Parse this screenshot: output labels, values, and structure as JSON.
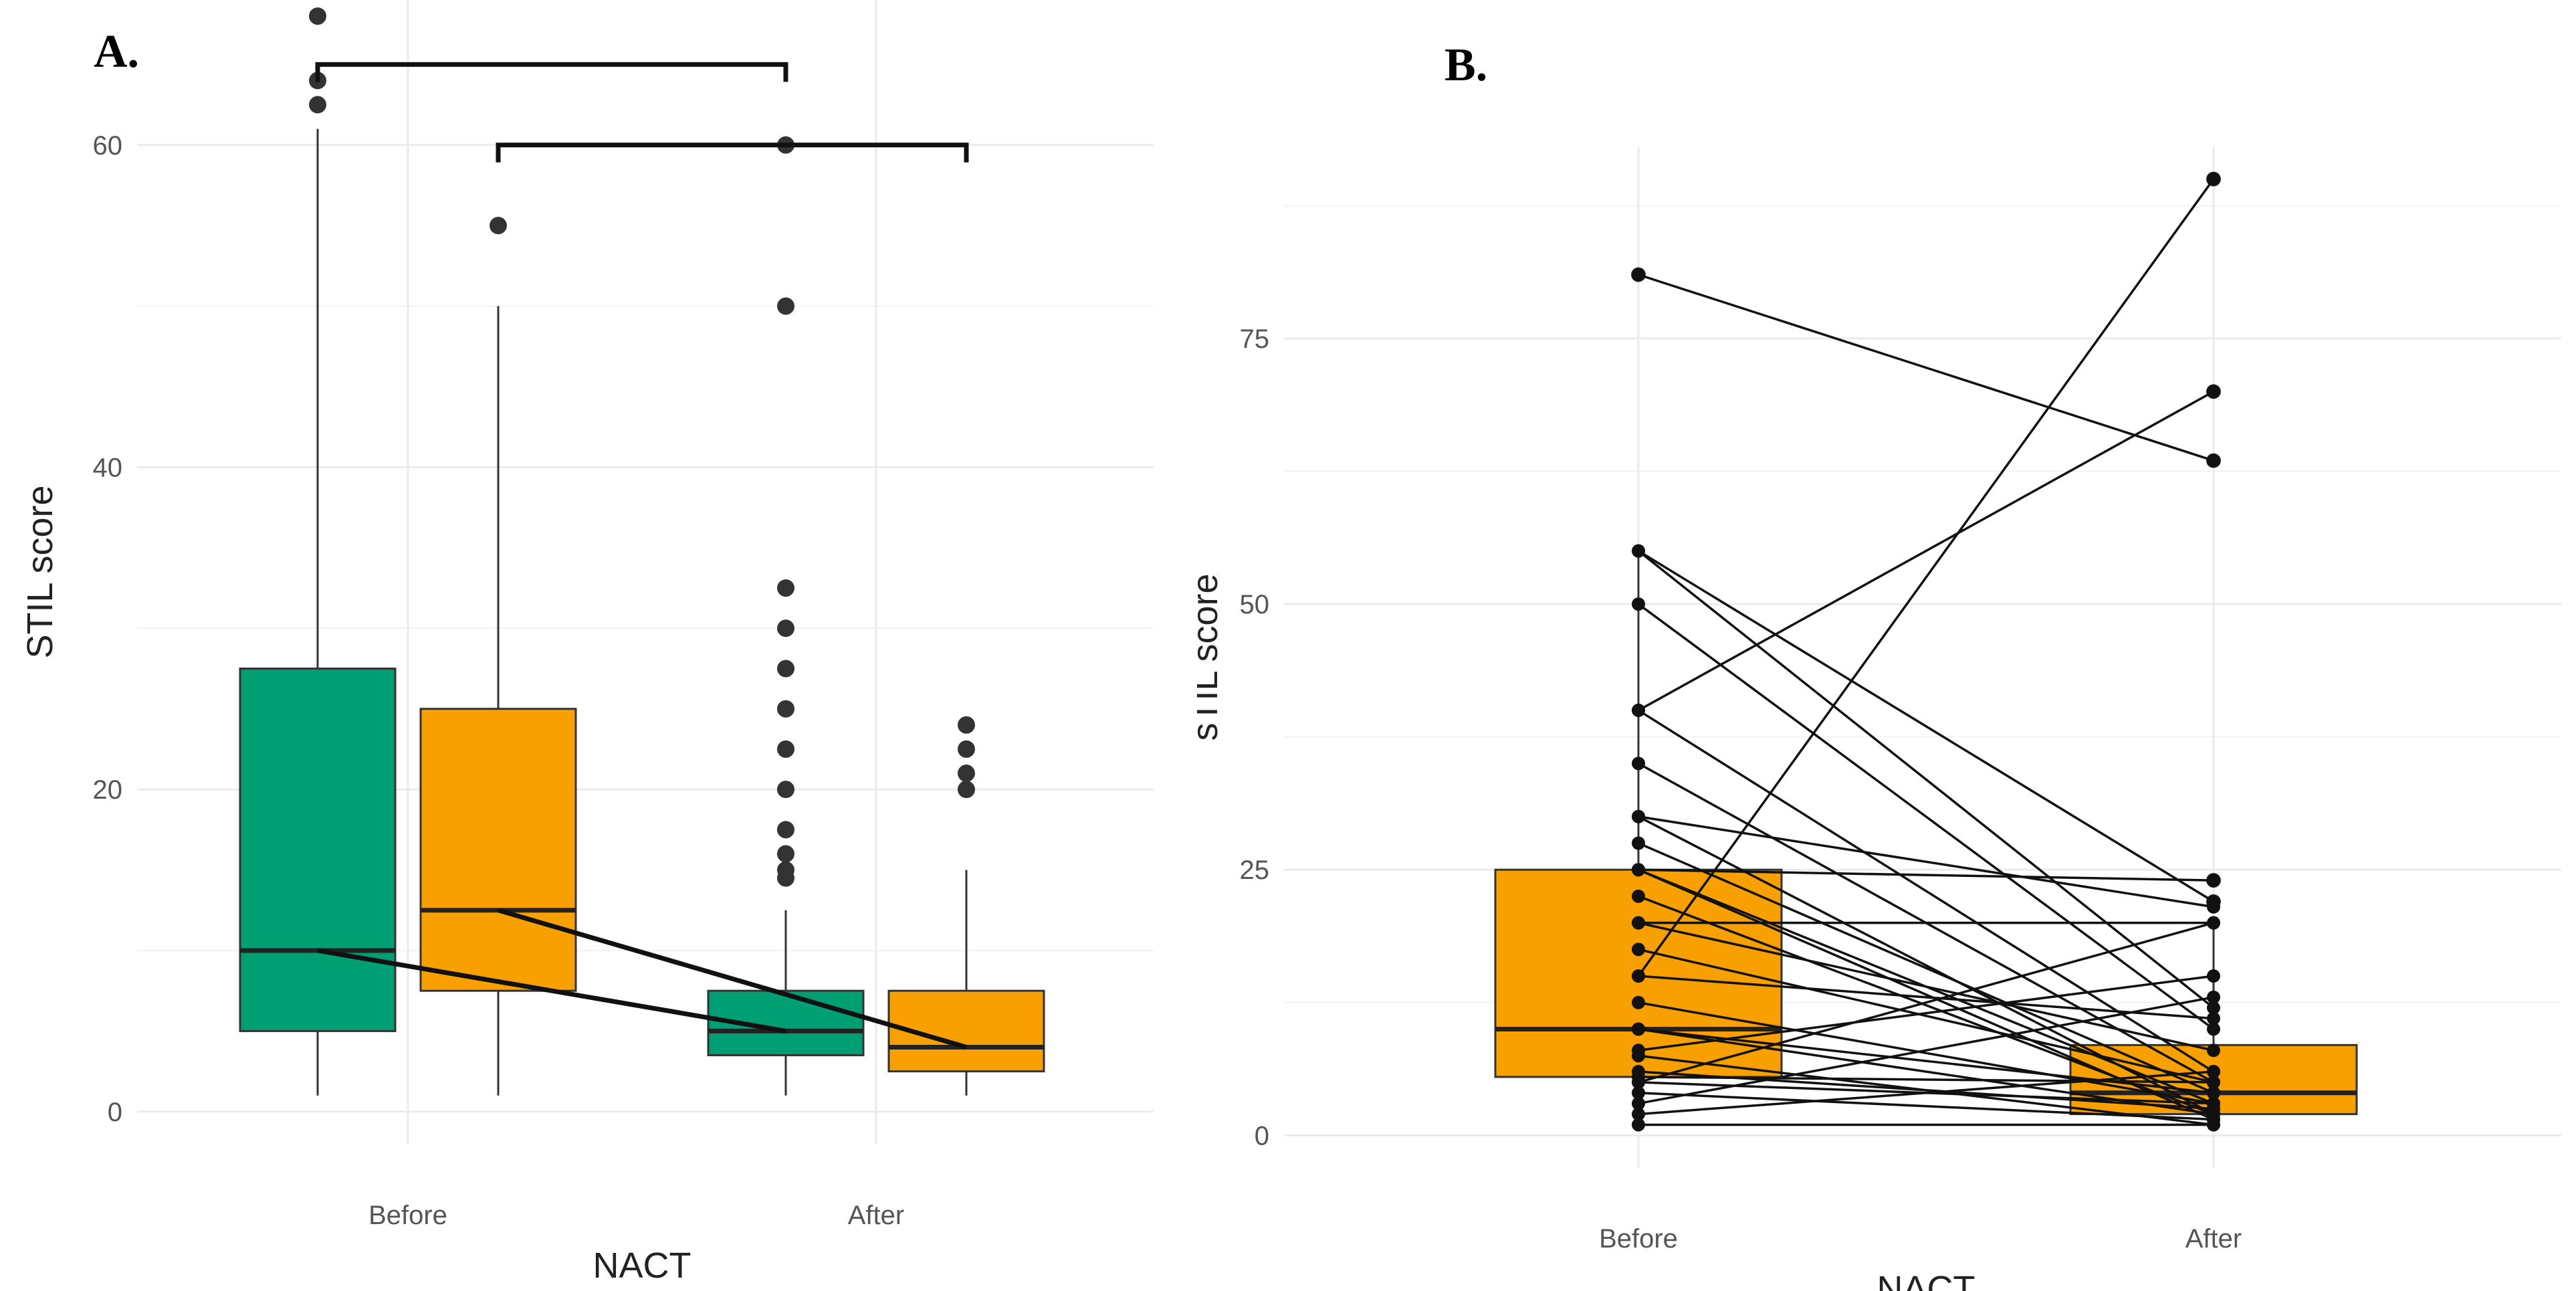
{
  "chart_data": [
    {
      "panel_label": "A.",
      "type": "box",
      "xlabel": "NACT",
      "ylabel": "STIL score",
      "categories": [
        "Before",
        "After"
      ],
      "ylim": [
        -2,
        69
      ],
      "yticks": [
        0,
        20,
        40,
        60
      ],
      "grid": true,
      "series": [
        {
          "name": "group1",
          "color": "#009E73",
          "boxes": [
            {
              "category": "Before",
              "q1": 5,
              "median": 10,
              "q3": 27.5,
              "whisker_low": 1,
              "whisker_high": 61,
              "outliers": [
                62.5,
                64,
                68
              ]
            },
            {
              "category": "After",
              "q1": 3.5,
              "median": 5,
              "q3": 7.5,
              "whisker_low": 1,
              "whisker_high": 12.5,
              "outliers": [
                14.5,
                15,
                16,
                17.5,
                20,
                22.5,
                25,
                27.5,
                30,
                32.5,
                50,
                60
              ]
            }
          ]
        },
        {
          "name": "group2",
          "color": "#F8A000",
          "boxes": [
            {
              "category": "Before",
              "q1": 7.5,
              "median": 12.5,
              "q3": 25,
              "whisker_low": 1,
              "whisker_high": 50,
              "outliers": [
                55
              ]
            },
            {
              "category": "After",
              "q1": 2.5,
              "median": 4,
              "q3": 7.5,
              "whisker_low": 1,
              "whisker_high": 15,
              "outliers": [
                20,
                21,
                22.5,
                24
              ]
            }
          ]
        }
      ],
      "median_lines": [
        {
          "series": "group1",
          "from": 10,
          "to": 5
        },
        {
          "series": "group2",
          "from": 12.5,
          "to": 4
        }
      ],
      "brackets": [
        {
          "series": "group1",
          "level": 65
        },
        {
          "series": "group2",
          "level": 60
        }
      ]
    },
    {
      "panel_label": "B.",
      "type": "box_paired",
      "xlabel": "NACT",
      "ylabel": "sTIL score",
      "categories": [
        "Before",
        "After"
      ],
      "ylim": [
        -3,
        93
      ],
      "yticks": [
        0,
        25,
        50,
        75
      ],
      "grid": true,
      "color": "#F8A000",
      "boxes": [
        {
          "category": "Before",
          "q1": 5.5,
          "median": 10,
          "q3": 25,
          "whisker_low": 1,
          "whisker_high": 55,
          "outliers": [
            81
          ]
        },
        {
          "category": "After",
          "q1": 2,
          "median": 4,
          "q3": 8.5,
          "whisker_low": 1,
          "whisker_high": 20,
          "outliers": [
            22,
            24,
            63.5,
            70,
            90
          ]
        }
      ],
      "pairs": [
        [
          81,
          63.5
        ],
        [
          40,
          70
        ],
        [
          15,
          90
        ],
        [
          55,
          22
        ],
        [
          55,
          12
        ],
        [
          50,
          10
        ],
        [
          40,
          6
        ],
        [
          35,
          5
        ],
        [
          30,
          21.5
        ],
        [
          30,
          2
        ],
        [
          27.5,
          4
        ],
        [
          25,
          24
        ],
        [
          25,
          3
        ],
        [
          25,
          1.5
        ],
        [
          22.5,
          2
        ],
        [
          20,
          20
        ],
        [
          20,
          8
        ],
        [
          17.5,
          5
        ],
        [
          15,
          11
        ],
        [
          12.5,
          3
        ],
        [
          10,
          4
        ],
        [
          10,
          2
        ],
        [
          8,
          15
        ],
        [
          7.5,
          1
        ],
        [
          6,
          2.5
        ],
        [
          5.5,
          5
        ],
        [
          5,
          20
        ],
        [
          5,
          3
        ],
        [
          4,
          1.5
        ],
        [
          3,
          13
        ],
        [
          2,
          6
        ],
        [
          1,
          1
        ]
      ]
    }
  ]
}
